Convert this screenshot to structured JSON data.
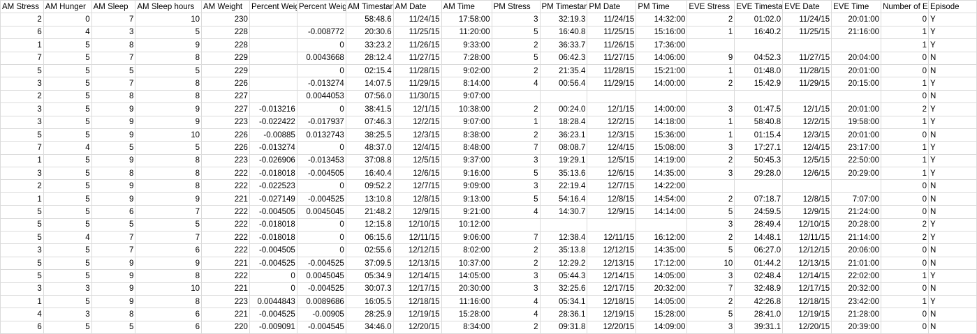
{
  "sheet": {
    "headers": [
      "AM Stress",
      "AM Hunger",
      "AM Sleep",
      "AM Sleep hours",
      "AM Weight",
      "Percent Weig",
      "Percent Weig",
      "AM Timestar",
      "AM Date",
      "AM Time",
      "PM Stress",
      "PM Timestar",
      "PM Date",
      "PM Time",
      "EVE Stress",
      "EVE Timestar",
      "EVE Date",
      "EVE Time",
      "Number of E",
      "Episode"
    ],
    "rows": [
      [
        "2",
        "0",
        "7",
        "10",
        "230",
        "",
        "",
        "58:48.6",
        "11/24/15",
        "17:58:00",
        "3",
        "32:19.3",
        "11/24/15",
        "14:32:00",
        "2",
        "01:02.0",
        "11/24/15",
        "20:01:00",
        "0",
        "Y"
      ],
      [
        "6",
        "4",
        "3",
        "5",
        "228",
        "",
        "-0.008772",
        "20:30.6",
        "11/25/15",
        "11:20:00",
        "5",
        "16:40.8",
        "11/25/15",
        "15:16:00",
        "1",
        "16:40.2",
        "11/25/15",
        "21:16:00",
        "1",
        "Y"
      ],
      [
        "1",
        "5",
        "8",
        "9",
        "228",
        "",
        "0",
        "33:23.2",
        "11/26/15",
        "9:33:00",
        "2",
        "36:33.7",
        "11/26/15",
        "17:36:00",
        "",
        "",
        "",
        "",
        "1",
        "Y"
      ],
      [
        "7",
        "5",
        "7",
        "8",
        "229",
        "",
        "0.0043668",
        "28:12.4",
        "11/27/15",
        "7:28:00",
        "5",
        "06:42.3",
        "11/27/15",
        "14:06:00",
        "9",
        "04:52.3",
        "11/27/15",
        "20:04:00",
        "0",
        "N"
      ],
      [
        "5",
        "5",
        "5",
        "5",
        "229",
        "",
        "0",
        "02:15.4",
        "11/28/15",
        "9:02:00",
        "2",
        "21:35.4",
        "11/28/15",
        "15:21:00",
        "1",
        "01:48.0",
        "11/28/15",
        "20:01:00",
        "0",
        "N"
      ],
      [
        "3",
        "5",
        "7",
        "8",
        "226",
        "",
        "-0.013274",
        "14:07.5",
        "11/29/15",
        "8:14:00",
        "4",
        "00:56.4",
        "11/29/15",
        "14:00:00",
        "2",
        "15:42.9",
        "11/29/15",
        "20:15:00",
        "1",
        "Y"
      ],
      [
        "2",
        "5",
        "8",
        "8",
        "227",
        "",
        "0.0044053",
        "07:56.0",
        "11/30/15",
        "9:07:00",
        "",
        "",
        "",
        "",
        "",
        "",
        "",
        "",
        "0",
        "N"
      ],
      [
        "3",
        "5",
        "9",
        "9",
        "227",
        "-0.013216",
        "0",
        "38:41.5",
        "12/1/15",
        "10:38:00",
        "2",
        "00:24.0",
        "12/1/15",
        "14:00:00",
        "3",
        "01:47.5",
        "12/1/15",
        "20:01:00",
        "2",
        "Y"
      ],
      [
        "3",
        "5",
        "9",
        "9",
        "223",
        "-0.022422",
        "-0.017937",
        "07:46.3",
        "12/2/15",
        "9:07:00",
        "1",
        "18:28.4",
        "12/2/15",
        "14:18:00",
        "1",
        "58:40.8",
        "12/2/15",
        "19:58:00",
        "1",
        "Y"
      ],
      [
        "5",
        "5",
        "9",
        "10",
        "226",
        "-0.00885",
        "0.0132743",
        "38:25.5",
        "12/3/15",
        "8:38:00",
        "2",
        "36:23.1",
        "12/3/15",
        "15:36:00",
        "1",
        "01:15.4",
        "12/3/15",
        "20:01:00",
        "0",
        "N"
      ],
      [
        "7",
        "4",
        "5",
        "5",
        "226",
        "-0.013274",
        "0",
        "48:37.0",
        "12/4/15",
        "8:48:00",
        "7",
        "08:08.7",
        "12/4/15",
        "15:08:00",
        "3",
        "17:27.1",
        "12/4/15",
        "23:17:00",
        "1",
        "Y"
      ],
      [
        "1",
        "5",
        "9",
        "8",
        "223",
        "-0.026906",
        "-0.013453",
        "37:08.8",
        "12/5/15",
        "9:37:00",
        "3",
        "19:29.1",
        "12/5/15",
        "14:19:00",
        "2",
        "50:45.3",
        "12/5/15",
        "22:50:00",
        "1",
        "Y"
      ],
      [
        "3",
        "5",
        "8",
        "8",
        "222",
        "-0.018018",
        "-0.004505",
        "16:40.4",
        "12/6/15",
        "9:16:00",
        "5",
        "35:13.6",
        "12/6/15",
        "14:35:00",
        "3",
        "29:28.0",
        "12/6/15",
        "20:29:00",
        "1",
        "Y"
      ],
      [
        "2",
        "5",
        "9",
        "8",
        "222",
        "-0.022523",
        "0",
        "09:52.2",
        "12/7/15",
        "9:09:00",
        "3",
        "22:19.4",
        "12/7/15",
        "14:22:00",
        "",
        "",
        "",
        "",
        "0",
        "N"
      ],
      [
        "1",
        "5",
        "9",
        "9",
        "221",
        "-0.027149",
        "-0.004525",
        "13:10.8",
        "12/8/15",
        "9:13:00",
        "5",
        "54:16.4",
        "12/8/15",
        "14:54:00",
        "2",
        "07:18.7",
        "12/8/15",
        "7:07:00",
        "0",
        "N"
      ],
      [
        "5",
        "5",
        "6",
        "7",
        "222",
        "-0.004505",
        "0.0045045",
        "21:48.2",
        "12/9/15",
        "9:21:00",
        "4",
        "14:30.7",
        "12/9/15",
        "14:14:00",
        "5",
        "24:59.5",
        "12/9/15",
        "21:24:00",
        "0",
        "N"
      ],
      [
        "5",
        "5",
        "5",
        "5",
        "222",
        "-0.018018",
        "0",
        "12:15.8",
        "12/10/15",
        "10:12:00",
        "",
        "",
        "",
        "",
        "3",
        "28:49.4",
        "12/10/15",
        "20:28:00",
        "2",
        "Y"
      ],
      [
        "5",
        "4",
        "7",
        "7",
        "222",
        "-0.018018",
        "0",
        "06:15.6",
        "12/11/15",
        "9:06:00",
        "7",
        "12:38.4",
        "12/11/15",
        "16:12:00",
        "2",
        "14:48.1",
        "12/11/15",
        "21:14:00",
        "2",
        "Y"
      ],
      [
        "3",
        "5",
        "7",
        "6",
        "222",
        "-0.004505",
        "0",
        "02:55.6",
        "12/12/15",
        "8:02:00",
        "2",
        "35:13.8",
        "12/12/15",
        "14:35:00",
        "5",
        "06:27.0",
        "12/12/15",
        "20:06:00",
        "0",
        "N"
      ],
      [
        "5",
        "5",
        "9",
        "9",
        "221",
        "-0.004525",
        "-0.004525",
        "37:09.5",
        "12/13/15",
        "10:37:00",
        "2",
        "12:29.2",
        "12/13/15",
        "17:12:00",
        "10",
        "01:44.2",
        "12/13/15",
        "21:01:00",
        "0",
        "N"
      ],
      [
        "5",
        "5",
        "9",
        "8",
        "222",
        "0",
        "0.0045045",
        "05:34.9",
        "12/14/15",
        "14:05:00",
        "3",
        "05:44.3",
        "12/14/15",
        "14:05:00",
        "3",
        "02:48.4",
        "12/14/15",
        "22:02:00",
        "1",
        "Y"
      ],
      [
        "3",
        "3",
        "9",
        "10",
        "221",
        "0",
        "-0.004525",
        "30:07.3",
        "12/17/15",
        "20:30:00",
        "3",
        "32:25.6",
        "12/17/15",
        "20:32:00",
        "7",
        "32:48.9",
        "12/17/15",
        "20:32:00",
        "0",
        "N"
      ],
      [
        "1",
        "5",
        "9",
        "8",
        "223",
        "0.0044843",
        "0.0089686",
        "16:05.5",
        "12/18/15",
        "11:16:00",
        "4",
        "05:34.1",
        "12/18/15",
        "14:05:00",
        "2",
        "42:26.8",
        "12/18/15",
        "23:42:00",
        "1",
        "Y"
      ],
      [
        "4",
        "3",
        "8",
        "6",
        "221",
        "-0.004525",
        "-0.00905",
        "28:25.9",
        "12/19/15",
        "15:28:00",
        "4",
        "28:36.1",
        "12/19/15",
        "15:28:00",
        "5",
        "28:41.0",
        "12/19/15",
        "21:28:00",
        "0",
        "N"
      ],
      [
        "6",
        "5",
        "5",
        "6",
        "220",
        "-0.009091",
        "-0.004545",
        "34:46.0",
        "12/20/15",
        "8:34:00",
        "2",
        "09:31.8",
        "12/20/15",
        "14:09:00",
        "3",
        "39:31.1",
        "12/20/15",
        "20:39:00",
        "0",
        "N"
      ]
    ]
  }
}
